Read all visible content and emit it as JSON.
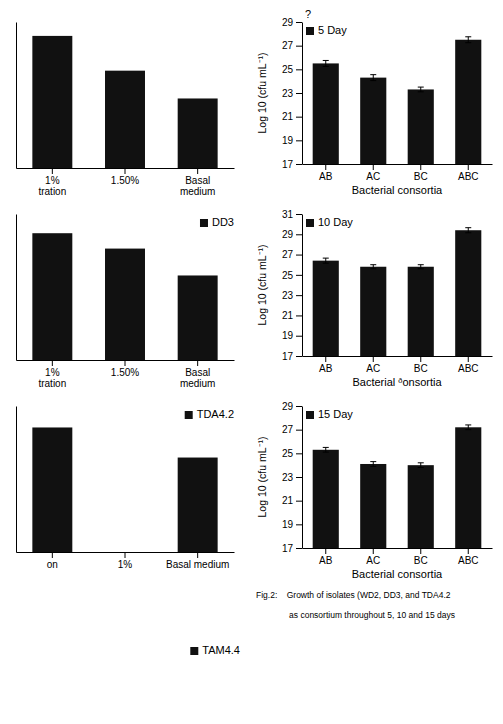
{
  "chart_data": [
    {
      "type": "bar",
      "categories": [
        "1%\ntration",
        "1.50%",
        "Basal\nmedium"
      ],
      "values": [
        38,
        28,
        20
      ],
      "color": "#111111",
      "ylim": [
        0,
        42
      ],
      "tick_labels": "x"
    },
    {
      "type": "bar",
      "categories": [
        "1%\ntration",
        "1.50%",
        "Basal\nmedium"
      ],
      "series": [
        {
          "name": "DD3",
          "color": "#111111",
          "values": [
            33,
            29,
            22
          ]
        }
      ],
      "ylim": [
        0,
        38
      ],
      "legend": "upper-right",
      "tick_labels": "x"
    },
    {
      "type": "bar",
      "categories": [
        "on",
        "1%",
        "Basal medium"
      ],
      "series": [
        {
          "name": "TDA4.2",
          "color": "#111111",
          "values": [
            29,
            null,
            22
          ]
        }
      ],
      "ylim": [
        0,
        34
      ],
      "legend": "upper-right",
      "tick_labels": "x"
    },
    {
      "type": "bar",
      "series": [
        {
          "name": "TAM4.4",
          "color": "#111111"
        }
      ],
      "legend": "right"
    },
    {
      "type": "bar",
      "categories": [
        "AB",
        "AC",
        "BC",
        "ABC"
      ],
      "series": [
        {
          "name": "5 Day",
          "color": "#111111",
          "values": [
            25.5,
            24.3,
            23.3,
            27.5
          ],
          "errors": [
            0.25,
            0.25,
            0.2,
            0.25
          ]
        }
      ],
      "xlabel": "Bacterial consortia",
      "ylabel": "Log 10 (cfu mL⁻¹)",
      "ylim": [
        17,
        29
      ],
      "yticks": [
        17,
        19,
        21,
        23,
        25,
        27,
        29
      ],
      "legend": "upper-left",
      "annotations": [
        "?"
      ]
    },
    {
      "type": "bar",
      "categories": [
        "AB",
        "AC",
        "BC",
        "ABC"
      ],
      "series": [
        {
          "name": "10 Day",
          "color": "#111111",
          "values": [
            26.4,
            25.8,
            25.8,
            29.4
          ],
          "errors": [
            0.25,
            0.2,
            0.2,
            0.25
          ]
        }
      ],
      "xlabel": "Bacterial ᶞonsortia",
      "ylabel": "Log 10 (cfu mL⁻¹)",
      "ylim": [
        17,
        31
      ],
      "yticks": [
        17,
        19,
        21,
        23,
        25,
        27,
        29,
        31
      ],
      "legend": "upper-left"
    },
    {
      "type": "bar",
      "categories": [
        "AB",
        "AC",
        "BC",
        "ABC"
      ],
      "series": [
        {
          "name": "15 Day",
          "color": "#111111",
          "values": [
            25.3,
            24.1,
            24.0,
            27.2
          ],
          "errors": [
            0.2,
            0.2,
            0.2,
            0.2
          ]
        }
      ],
      "xlabel": "Bacterial consortia",
      "ylabel": "Log 10 (cfu mL⁻¹)",
      "ylim": [
        17,
        29
      ],
      "yticks": [
        17,
        19,
        21,
        23,
        25,
        27,
        29
      ],
      "legend": "upper-left"
    },
    {
      "type": "text",
      "annotations": [
        "Fig.2:    Growth of isolates (WD2, DD3, and TDA4.2",
        "              as consortium throughout 5, 10 and 15 days"
      ]
    }
  ]
}
